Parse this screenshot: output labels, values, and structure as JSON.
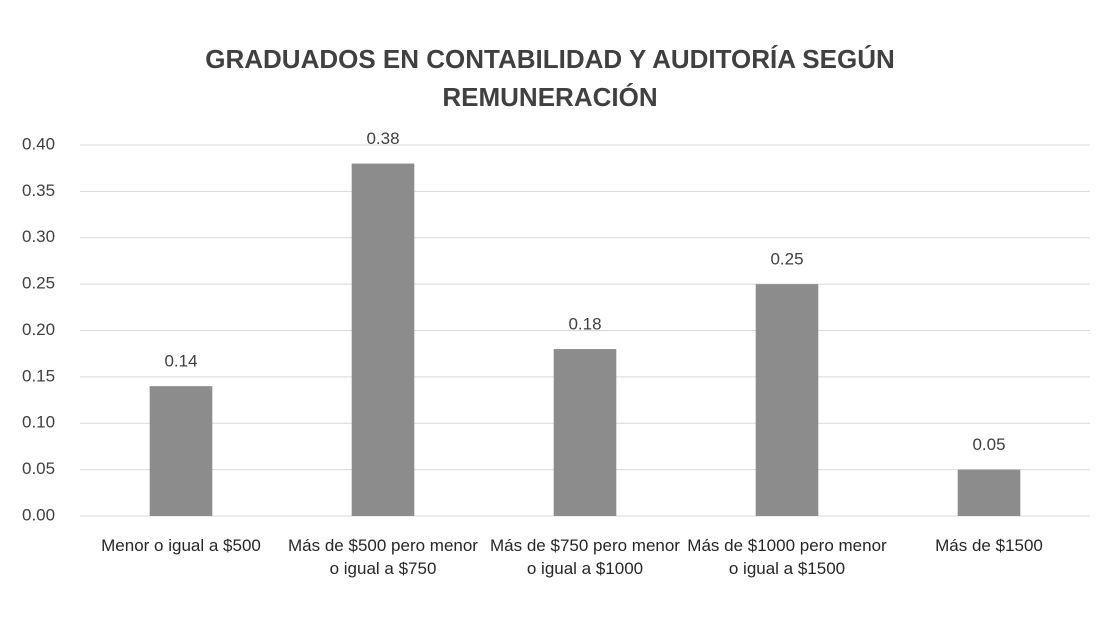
{
  "chart_data": {
    "type": "bar",
    "title": "GRADUADOS EN CONTABILIDAD Y AUDITORÍA SEGÚN REMUNERACIÓN",
    "categories": [
      "Menor o igual a $500",
      "Más de $500 pero menor o igual a $750",
      "Más de $750 pero menor o igual a $1000",
      "Más de $1000 pero menor o igual a $1500",
      "Más de $1500"
    ],
    "values": [
      0.14,
      0.38,
      0.18,
      0.25,
      0.05
    ],
    "color": "#8c8c8c",
    "ylim": [
      0,
      0.4
    ],
    "yticks": [
      {
        "value": 0,
        "label": "0.00"
      },
      {
        "value": 0.05,
        "label": "0.05"
      },
      {
        "value": 0.1,
        "label": "0.10"
      },
      {
        "value": 0.15,
        "label": "0.15"
      },
      {
        "value": 0.2,
        "label": "0.20"
      },
      {
        "value": 0.25,
        "label": "0.25"
      },
      {
        "value": 0.3,
        "label": "0.30"
      },
      {
        "value": 0.35,
        "label": "0.35"
      },
      {
        "value": 0.4,
        "label": "0.40"
      }
    ],
    "grid": true
  }
}
